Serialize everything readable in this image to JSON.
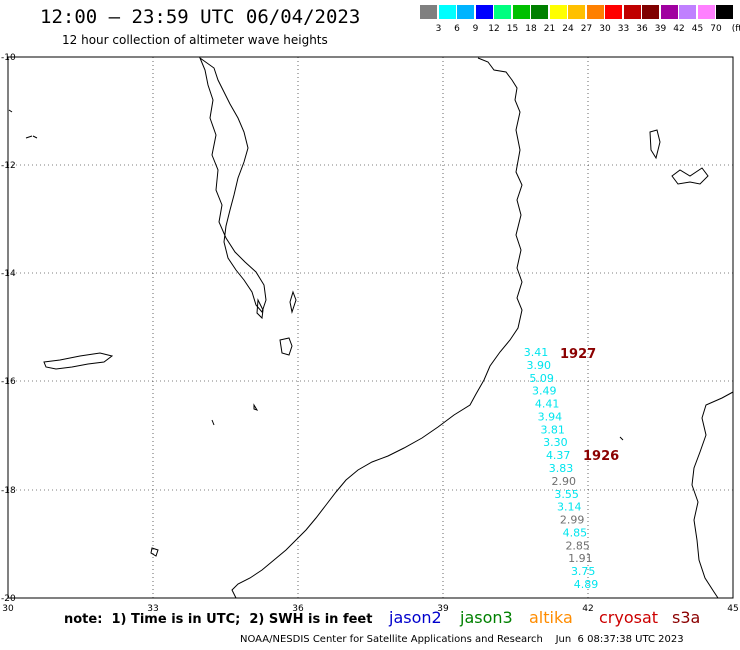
{
  "header": {
    "title": "12:00 – 23:59 UTC 06/04/2023",
    "subtitle": "12 hour collection of altimeter wave heights"
  },
  "scale": {
    "unit": "(ft)",
    "colors": [
      "#808080",
      "#00ffff",
      "#00b4ff",
      "#0000ff",
      "#00ff80",
      "#00c000",
      "#008000",
      "#ffff00",
      "#ffc000",
      "#ff8000",
      "#ff0000",
      "#c00000",
      "#800000",
      "#a000a0",
      "#c080ff",
      "#ff80ff",
      "#000000"
    ],
    "labels": [
      "3",
      "6",
      "9",
      "12",
      "15",
      "18",
      "21",
      "24",
      "27",
      "30",
      "33",
      "36",
      "39",
      "42",
      "45",
      "70"
    ]
  },
  "axes": {
    "lat_labels": [
      "-10",
      "-12",
      "-14",
      "-16",
      "-18",
      "-20"
    ],
    "lon_labels": [
      "30",
      "33",
      "36",
      "39",
      "42",
      "45"
    ]
  },
  "passes": [
    {
      "label": "1927"
    },
    {
      "label": "1926"
    }
  ],
  "wave_heights": [
    {
      "v": "3.41",
      "c": "#00e5ee"
    },
    {
      "v": "3.90",
      "c": "#00e5ee"
    },
    {
      "v": "5.09",
      "c": "#00e5ee"
    },
    {
      "v": "3.49",
      "c": "#00e5ee"
    },
    {
      "v": "4.41",
      "c": "#00e5ee"
    },
    {
      "v": "3.94",
      "c": "#00e5ee"
    },
    {
      "v": "3.81",
      "c": "#00e5ee"
    },
    {
      "v": "3.30",
      "c": "#00e5ee"
    },
    {
      "v": "4.37",
      "c": "#00e5ee"
    },
    {
      "v": "3.83",
      "c": "#00e5ee"
    },
    {
      "v": "2.90",
      "c": "#707070"
    },
    {
      "v": "3.55",
      "c": "#00e5ee"
    },
    {
      "v": "3.14",
      "c": "#00e5ee"
    },
    {
      "v": "2.99",
      "c": "#707070"
    },
    {
      "v": "4.85",
      "c": "#00e5ee"
    },
    {
      "v": "2.85",
      "c": "#707070"
    },
    {
      "v": "1.91",
      "c": "#707070"
    },
    {
      "v": "3.75",
      "c": "#00e5ee"
    },
    {
      "v": "4.89",
      "c": "#00e5ee"
    }
  ],
  "note": "note:  1) Time is in UTC;  2) SWH is in feet",
  "legend": [
    {
      "name": "jason2",
      "color": "#0000cc"
    },
    {
      "name": "jason3",
      "color": "#008000"
    },
    {
      "name": "altika",
      "color": "#ff8c00"
    },
    {
      "name": "cryosat",
      "color": "#cc0000"
    },
    {
      "name": "s3a",
      "color": "#8b0000"
    }
  ],
  "footer": "NOAA/NESDIS Center for Satellite Applications and Research    Jun  6 08:37:38 UTC 2023"
}
